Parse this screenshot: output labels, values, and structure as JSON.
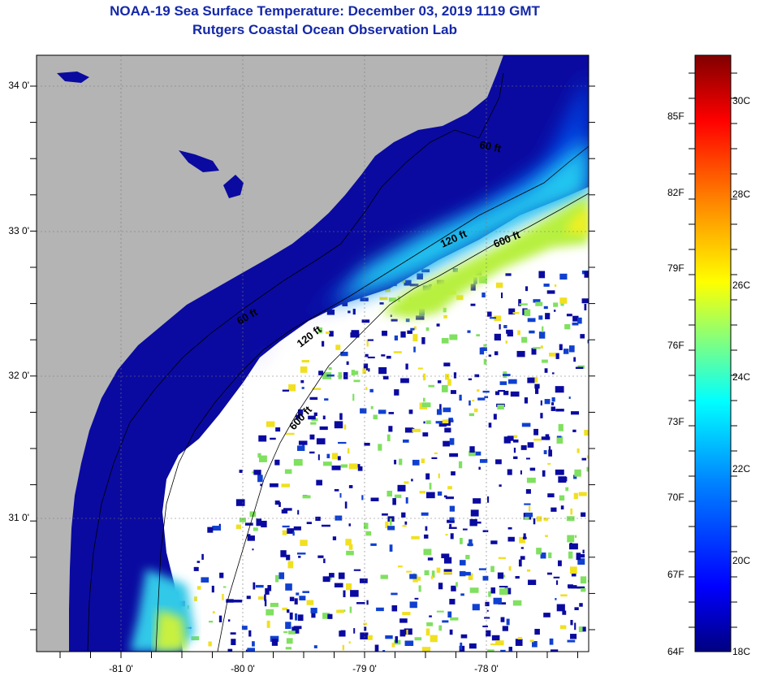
{
  "title": {
    "line1": "NOAA-19 Sea Surface Temperature:  December 03, 2019 1119 GMT",
    "line2": "Rutgers Coastal Ocean Observation Lab"
  },
  "map": {
    "latitude_labels": [
      "34 0'",
      "33 0'",
      "32 0'",
      "31 0'"
    ],
    "longitude_labels": [
      "-81 0'",
      "-80 0'",
      "-79 0'",
      "-78 0'"
    ],
    "isobath_labels": [
      "60 ft",
      "120 ft",
      "600 ft",
      "60 ft",
      "120 ft",
      "600 ft"
    ]
  },
  "colorbar": {
    "fahrenheit_labels": [
      "85F",
      "82F",
      "79F",
      "76F",
      "73F",
      "70F",
      "67F",
      "64F"
    ],
    "celsius_labels": [
      "30C",
      "28C",
      "26C",
      "24C",
      "22C",
      "20C",
      "18C"
    ],
    "colors": [
      "#000080",
      "#0000ff",
      "#0080ff",
      "#00ffff",
      "#80ff80",
      "#ffff00",
      "#ff8000",
      "#ff0000",
      "#800000"
    ]
  },
  "colors": {
    "title": "#1428a8",
    "land": "#b4b4b4",
    "no_data": "#ffffff"
  }
}
